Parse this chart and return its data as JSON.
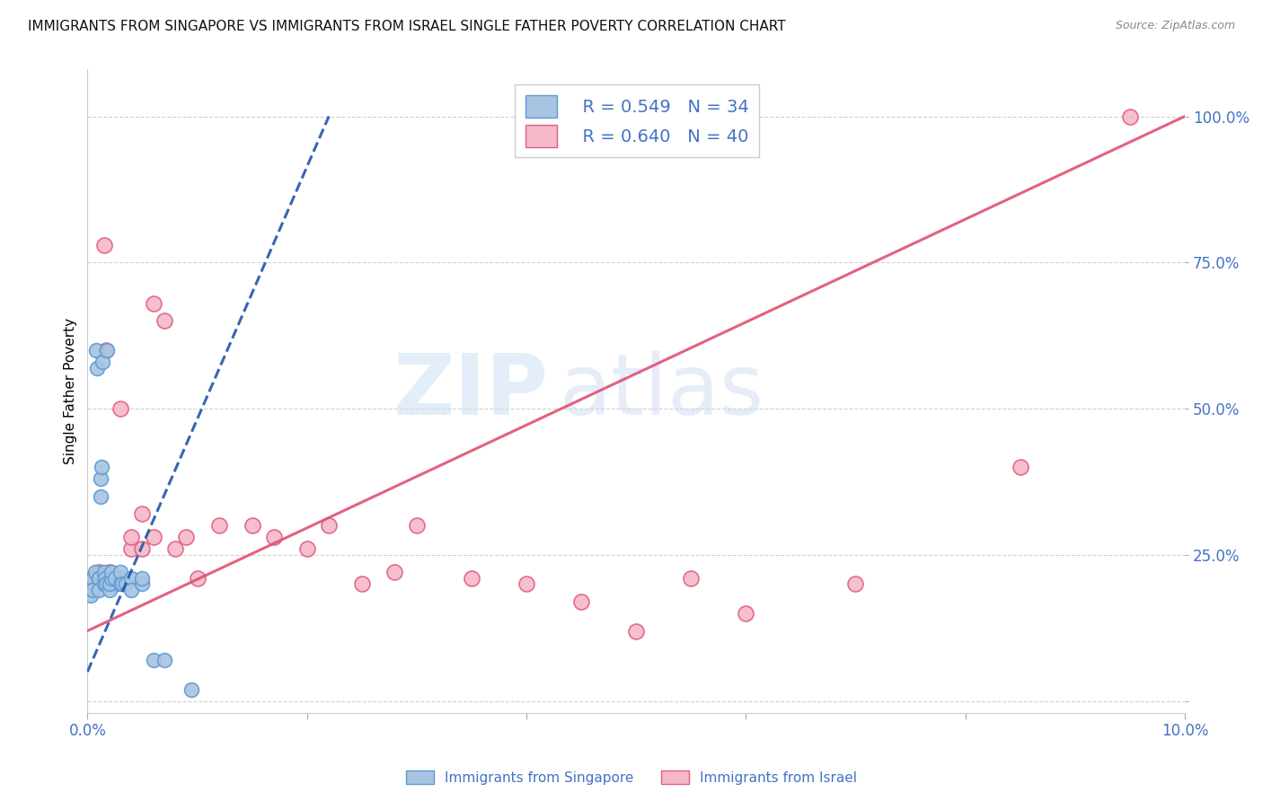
{
  "title": "IMMIGRANTS FROM SINGAPORE VS IMMIGRANTS FROM ISRAEL SINGLE FATHER POVERTY CORRELATION CHART",
  "source": "Source: ZipAtlas.com",
  "ylabel": "Single Father Poverty",
  "xlim": [
    0.0,
    0.1
  ],
  "ylim": [
    -0.02,
    1.08
  ],
  "xticks": [
    0.0,
    0.02,
    0.04,
    0.06,
    0.08,
    0.1
  ],
  "xtick_labels": [
    "0.0%",
    "",
    "",
    "",
    "",
    "10.0%"
  ],
  "yticks": [
    0.0,
    0.25,
    0.5,
    0.75,
    1.0
  ],
  "ytick_labels": [
    "",
    "25.0%",
    "50.0%",
    "75.0%",
    "100.0%"
  ],
  "legend_r1": "R = 0.549",
  "legend_n1": "N = 34",
  "legend_r2": "R = 0.640",
  "legend_n2": "N = 40",
  "singapore_color": "#a8c4e0",
  "singapore_edge": "#5b9bd5",
  "israel_color": "#f4b8c8",
  "israel_edge": "#e06080",
  "singapore_line_color": "#2255aa",
  "israel_line_color": "#e05070",
  "watermark_zip": "ZIP",
  "watermark_atlas": "atlas",
  "singapore_x": [
    0.0003,
    0.0003,
    0.0005,
    0.0005,
    0.0007,
    0.0008,
    0.0009,
    0.001,
    0.001,
    0.0012,
    0.0012,
    0.0013,
    0.0014,
    0.0015,
    0.0015,
    0.0016,
    0.0017,
    0.0018,
    0.002,
    0.002,
    0.0022,
    0.0022,
    0.0025,
    0.003,
    0.003,
    0.0032,
    0.0035,
    0.004,
    0.004,
    0.005,
    0.005,
    0.006,
    0.007,
    0.0095
  ],
  "singapore_y": [
    0.2,
    0.18,
    0.21,
    0.19,
    0.22,
    0.6,
    0.57,
    0.21,
    0.19,
    0.35,
    0.38,
    0.4,
    0.58,
    0.22,
    0.2,
    0.21,
    0.2,
    0.6,
    0.19,
    0.2,
    0.21,
    0.22,
    0.21,
    0.2,
    0.22,
    0.2,
    0.2,
    0.21,
    0.19,
    0.2,
    0.21,
    0.07,
    0.07,
    0.02
  ],
  "singapore_line_x": [
    0.0,
    0.022
  ],
  "singapore_line_y": [
    0.05,
    1.0
  ],
  "israel_x": [
    0.0003,
    0.0005,
    0.0007,
    0.001,
    0.001,
    0.0013,
    0.0015,
    0.0017,
    0.002,
    0.002,
    0.0025,
    0.003,
    0.003,
    0.004,
    0.004,
    0.005,
    0.005,
    0.006,
    0.006,
    0.007,
    0.008,
    0.009,
    0.01,
    0.012,
    0.015,
    0.017,
    0.02,
    0.022,
    0.025,
    0.028,
    0.03,
    0.035,
    0.04,
    0.045,
    0.05,
    0.055,
    0.06,
    0.07,
    0.085,
    0.095
  ],
  "israel_y": [
    0.2,
    0.21,
    0.2,
    0.22,
    0.2,
    0.21,
    0.78,
    0.6,
    0.21,
    0.22,
    0.2,
    0.21,
    0.5,
    0.26,
    0.28,
    0.26,
    0.32,
    0.28,
    0.68,
    0.65,
    0.26,
    0.28,
    0.21,
    0.3,
    0.3,
    0.28,
    0.26,
    0.3,
    0.2,
    0.22,
    0.3,
    0.21,
    0.2,
    0.17,
    0.12,
    0.21,
    0.15,
    0.2,
    0.4,
    1.0
  ],
  "israel_line_x": [
    0.0,
    0.1
  ],
  "israel_line_y": [
    0.12,
    1.0
  ]
}
